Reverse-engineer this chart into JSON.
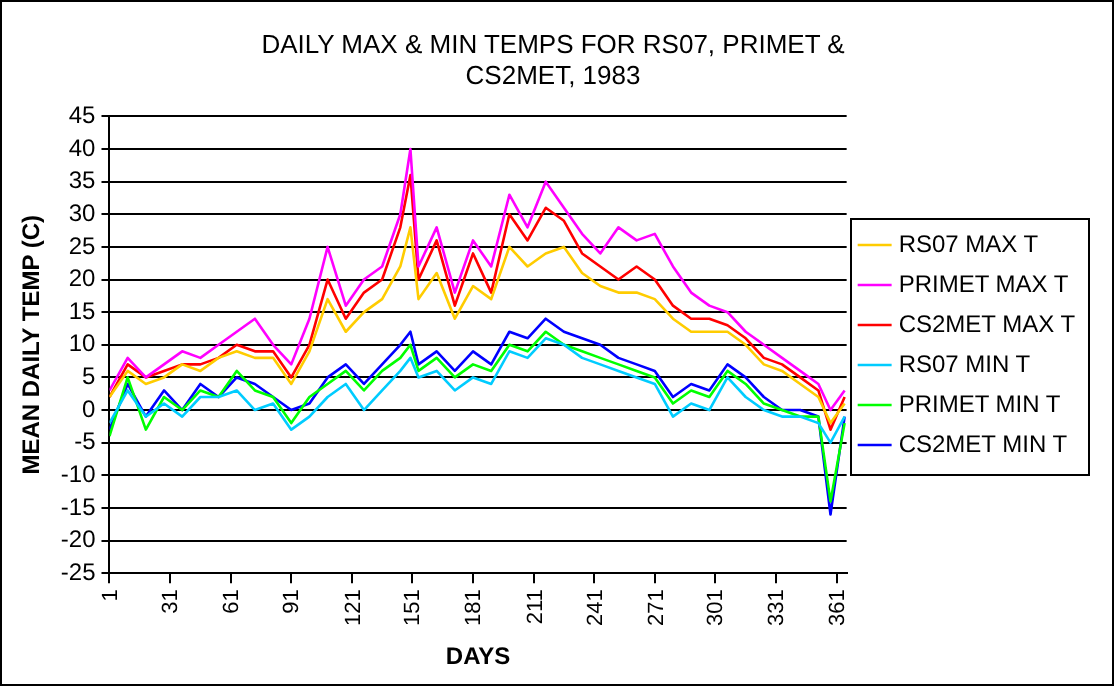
{
  "chart_data": {
    "type": "line",
    "title": "DAILY MAX & MIN TEMPS FOR RS07, PRIMET &\nCS2MET, 1983",
    "xlabel": "DAYS",
    "ylabel": "MEAN DAILY TEMP (C)",
    "x": [
      1,
      10,
      19,
      28,
      37,
      46,
      55,
      64,
      73,
      82,
      91,
      100,
      109,
      118,
      127,
      136,
      145,
      150,
      154,
      163,
      172,
      181,
      190,
      199,
      208,
      217,
      226,
      235,
      244,
      253,
      262,
      271,
      280,
      289,
      298,
      307,
      316,
      325,
      334,
      343,
      352,
      358,
      365
    ],
    "xlim": [
      1,
      366
    ],
    "xticks": [
      1,
      31,
      61,
      91,
      121,
      151,
      181,
      211,
      241,
      271,
      301,
      331,
      361
    ],
    "ylim": [
      -25,
      45
    ],
    "yticks": [
      -25,
      -20,
      -15,
      -10,
      -5,
      0,
      5,
      10,
      15,
      20,
      25,
      30,
      35,
      40,
      45
    ],
    "grid": "y",
    "legend": "right",
    "marker": "none",
    "line_style": "solid",
    "series": [
      {
        "name": "RS07 MAX T",
        "color": "#ffcc00",
        "values": [
          2,
          6,
          4,
          5,
          7,
          6,
          8,
          9,
          8,
          8,
          4,
          9,
          17,
          12,
          15,
          17,
          22,
          28,
          17,
          21,
          14,
          19,
          17,
          25,
          22,
          24,
          25,
          21,
          19,
          18,
          18,
          17,
          14,
          12,
          12,
          12,
          10,
          7,
          6,
          4,
          2,
          -2,
          1
        ]
      },
      {
        "name": "PRIMET MAX T",
        "color": "#ff00ff",
        "values": [
          3,
          8,
          5,
          7,
          9,
          8,
          10,
          12,
          14,
          10,
          7,
          14,
          25,
          16,
          20,
          22,
          30,
          40,
          22,
          28,
          18,
          26,
          22,
          33,
          28,
          35,
          31,
          27,
          24,
          28,
          26,
          27,
          22,
          18,
          16,
          15,
          12,
          10,
          8,
          6,
          4,
          0,
          3
        ]
      },
      {
        "name": "CS2MET MAX T",
        "color": "#ff0000",
        "values": [
          2,
          7,
          5,
          6,
          7,
          7,
          8,
          10,
          9,
          9,
          5,
          10,
          20,
          14,
          18,
          20,
          28,
          36,
          20,
          26,
          16,
          24,
          18,
          30,
          26,
          31,
          29,
          24,
          22,
          20,
          22,
          20,
          16,
          14,
          14,
          13,
          11,
          8,
          7,
          5,
          3,
          -3,
          2
        ]
      },
      {
        "name": "RS07 MIN T",
        "color": "#00ccff",
        "values": [
          -2,
          3,
          -1,
          1,
          -1,
          2,
          2,
          3,
          0,
          1,
          -3,
          -1,
          2,
          4,
          0,
          3,
          6,
          8,
          5,
          6,
          3,
          5,
          4,
          9,
          8,
          11,
          10,
          8,
          7,
          6,
          5,
          4,
          -1,
          1,
          0,
          5,
          2,
          0,
          -1,
          -1,
          -2,
          -5,
          -1
        ]
      },
      {
        "name": "PRIMET MIN T",
        "color": "#00ff00",
        "values": [
          -4,
          5,
          -3,
          2,
          0,
          3,
          2,
          6,
          3,
          2,
          -2,
          2,
          4,
          6,
          3,
          6,
          8,
          10,
          6,
          8,
          5,
          7,
          6,
          10,
          9,
          12,
          10,
          9,
          8,
          7,
          6,
          5,
          1,
          3,
          2,
          6,
          4,
          1,
          0,
          -1,
          -1,
          -14,
          -2
        ]
      },
      {
        "name": "CS2MET MIN T",
        "color": "#0000ff",
        "values": [
          -3,
          4,
          -1,
          3,
          0,
          4,
          2,
          5,
          4,
          2,
          0,
          1,
          5,
          7,
          4,
          7,
          10,
          12,
          7,
          9,
          6,
          9,
          7,
          12,
          11,
          14,
          12,
          11,
          10,
          8,
          7,
          6,
          2,
          4,
          3,
          7,
          5,
          2,
          0,
          0,
          -1,
          -16,
          -1
        ]
      }
    ]
  }
}
